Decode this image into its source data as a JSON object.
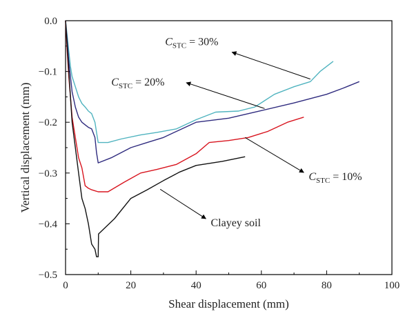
{
  "chart_data": {
    "type": "line",
    "title": "",
    "xlabel": "Shear displacement (mm)",
    "ylabel": "Vertical displacement (mm)",
    "xlim": [
      0,
      100
    ],
    "ylim": [
      -0.5,
      0
    ],
    "xticks": [
      0,
      20,
      40,
      60,
      80,
      100
    ],
    "yticks": [
      0.0,
      -0.1,
      -0.2,
      -0.3,
      -0.4,
      -0.5
    ],
    "xtick_labels": [
      "0",
      "20",
      "40",
      "60",
      "80",
      "100"
    ],
    "ytick_labels": [
      "0.0",
      "−0.1",
      "−0.2",
      "−0.3",
      "−0.4",
      "−0.5"
    ],
    "grid": false,
    "legend": "none (series identified by arrow annotations)",
    "series": [
      {
        "name": "C_STC = 30%",
        "color": "#4FB3BF",
        "x": [
          0,
          0.5,
          1,
          1.5,
          2,
          3,
          4,
          5,
          6,
          7,
          8,
          9,
          9.5,
          10,
          11,
          13,
          17,
          23,
          28,
          34,
          40,
          46,
          53,
          58,
          64,
          70,
          75,
          78,
          82
        ],
        "y": [
          0,
          -0.03,
          -0.06,
          -0.09,
          -0.11,
          -0.13,
          -0.15,
          -0.163,
          -0.17,
          -0.178,
          -0.183,
          -0.2,
          -0.22,
          -0.24,
          -0.24,
          -0.24,
          -0.233,
          -0.225,
          -0.22,
          -0.213,
          -0.195,
          -0.18,
          -0.178,
          -0.17,
          -0.145,
          -0.13,
          -0.12,
          -0.1,
          -0.08
        ]
      },
      {
        "name": "C_STC = 20%",
        "color": "#2E2A7E",
        "x": [
          0,
          0.5,
          1,
          1.5,
          2,
          3,
          4,
          5,
          6,
          7,
          8,
          9,
          9.5,
          10,
          14,
          20,
          25,
          30,
          35,
          40,
          50,
          60,
          70,
          80,
          85,
          90
        ],
        "y": [
          0,
          -0.04,
          -0.08,
          -0.11,
          -0.14,
          -0.17,
          -0.19,
          -0.2,
          -0.205,
          -0.21,
          -0.213,
          -0.23,
          -0.26,
          -0.28,
          -0.27,
          -0.25,
          -0.24,
          -0.23,
          -0.215,
          -0.2,
          -0.192,
          -0.177,
          -0.162,
          -0.145,
          -0.133,
          -0.12
        ]
      },
      {
        "name": "C_STC = 10%",
        "color": "#D8141E",
        "x": [
          0,
          0.5,
          1,
          1.5,
          2,
          3,
          4,
          5,
          6,
          7,
          8,
          9,
          10,
          11,
          13,
          18,
          23,
          28,
          34,
          40,
          44,
          50,
          56,
          62,
          68,
          73
        ],
        "y": [
          0,
          -0.06,
          -0.11,
          -0.15,
          -0.19,
          -0.23,
          -0.27,
          -0.29,
          -0.325,
          -0.33,
          -0.333,
          -0.335,
          -0.337,
          -0.337,
          -0.337,
          -0.318,
          -0.3,
          -0.293,
          -0.283,
          -0.262,
          -0.24,
          -0.236,
          -0.23,
          -0.218,
          -0.2,
          -0.19
        ]
      },
      {
        "name": "Clayey soil",
        "color": "#111111",
        "x": [
          0,
          0.5,
          1,
          1.5,
          2,
          3,
          4,
          5,
          6,
          7,
          8,
          9,
          9.5,
          10,
          10.1,
          15,
          20,
          25,
          30,
          35,
          40,
          48,
          55
        ],
        "y": [
          0,
          -0.05,
          -0.1,
          -0.15,
          -0.2,
          -0.25,
          -0.3,
          -0.35,
          -0.37,
          -0.4,
          -0.44,
          -0.45,
          -0.465,
          -0.465,
          -0.42,
          -0.39,
          -0.35,
          -0.333,
          -0.315,
          -0.298,
          -0.285,
          -0.277,
          -0.268
        ]
      }
    ],
    "annotations": [
      {
        "series": "C_STC = 30%",
        "symbol": "C",
        "subscript": "STC",
        "rest": " = 30%",
        "text_at": [
          30.5,
          -0.048
        ],
        "arrow_from": [
          75,
          -0.115
        ],
        "arrow_to": [
          51,
          -0.062
        ]
      },
      {
        "series": "C_STC = 20%",
        "symbol": "C",
        "subscript": "STC",
        "rest": " = 20%",
        "text_at": [
          14,
          -0.128
        ],
        "arrow_from": [
          61,
          -0.173
        ],
        "arrow_to": [
          37,
          -0.122
        ]
      },
      {
        "series": "C_STC = 10%",
        "symbol": "C",
        "subscript": "STC",
        "rest": " = 10%",
        "text_at": [
          74.5,
          -0.314
        ],
        "arrow_from": [
          55,
          -0.23
        ],
        "arrow_to": [
          73,
          -0.299
        ]
      },
      {
        "series": "Clayey soil",
        "symbol": "",
        "subscript": "",
        "rest": "Clayey soil",
        "text_at": [
          44.5,
          -0.405
        ],
        "arrow_from": [
          29,
          -0.332
        ],
        "arrow_to": [
          43,
          -0.39
        ]
      }
    ]
  }
}
